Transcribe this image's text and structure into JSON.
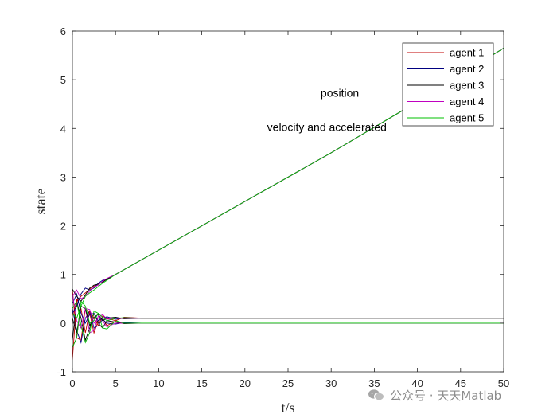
{
  "chart_data": {
    "type": "line",
    "title": "",
    "xlabel": "t/s",
    "ylabel": "state",
    "xlim": [
      0,
      50
    ],
    "ylim": [
      -1,
      6
    ],
    "xticks": [
      0,
      5,
      10,
      15,
      20,
      25,
      30,
      35,
      40,
      45,
      50
    ],
    "yticks": [
      -1,
      0,
      1,
      2,
      3,
      4,
      5,
      6
    ],
    "grid": false,
    "legend_position": "top-right",
    "annotations": [
      {
        "text": "position",
        "x": 31.0,
        "y": 4.65
      },
      {
        "text": "velocity and accelerated",
        "x": 29.5,
        "y": 3.95
      }
    ],
    "series": [
      {
        "name": "agent 1",
        "color": "#c00000",
        "x": [
          0,
          0.5,
          1,
          1.5,
          2,
          2.5,
          3,
          3.5,
          4,
          5,
          6,
          8,
          10,
          15,
          20,
          30,
          40,
          50
        ],
        "position": [
          0.15,
          0.45,
          0.55,
          0.62,
          0.7,
          0.76,
          0.8,
          0.85,
          0.9,
          1.0,
          1.1,
          1.3,
          1.5,
          2.0,
          2.5,
          3.5,
          4.55,
          5.65
        ],
        "velocity": [
          -0.75,
          0.5,
          0.3,
          -0.2,
          0.25,
          0.1,
          -0.05,
          0.15,
          0.1,
          0.05,
          0.12,
          0.1,
          0.1,
          0.1,
          0.1,
          0.1,
          0.1,
          0.1
        ],
        "acceleration": [
          0.7,
          -0.3,
          -0.35,
          0.3,
          0.2,
          -0.2,
          0.05,
          0.1,
          -0.05,
          0.03,
          0.0,
          0.0,
          0.0,
          0.0,
          0.0,
          0.0,
          0.0,
          0.0
        ]
      },
      {
        "name": "agent 2",
        "color": "#000080",
        "x": [
          0,
          0.5,
          1,
          1.5,
          2,
          2.5,
          3,
          3.5,
          4,
          5,
          6,
          8,
          10,
          15,
          20,
          30,
          40,
          50
        ],
        "position": [
          0.2,
          0.35,
          0.6,
          0.72,
          0.68,
          0.72,
          0.82,
          0.88,
          0.9,
          1.0,
          1.1,
          1.3,
          1.5,
          2.0,
          2.5,
          3.5,
          4.55,
          5.65
        ],
        "velocity": [
          0.4,
          0.6,
          0.2,
          0.0,
          0.18,
          0.2,
          0.05,
          0.1,
          0.13,
          0.08,
          0.11,
          0.1,
          0.1,
          0.1,
          0.1,
          0.1,
          0.1,
          0.1
        ],
        "acceleration": [
          0.3,
          -0.15,
          -0.4,
          0.1,
          0.25,
          -0.1,
          -0.05,
          0.08,
          0.0,
          -0.02,
          0.01,
          0.0,
          0.0,
          0.0,
          0.0,
          0.0,
          0.0,
          0.0
        ]
      },
      {
        "name": "agent 3",
        "color": "#000000",
        "x": [
          0,
          0.5,
          1,
          1.5,
          2,
          2.5,
          3,
          3.5,
          4,
          5,
          6,
          8,
          10,
          15,
          20,
          30,
          40,
          50
        ],
        "position": [
          0.7,
          0.55,
          0.45,
          0.58,
          0.72,
          0.78,
          0.8,
          0.84,
          0.9,
          1.0,
          1.1,
          1.3,
          1.5,
          2.0,
          2.5,
          3.5,
          4.55,
          5.65
        ],
        "velocity": [
          0.1,
          -0.2,
          0.35,
          0.3,
          -0.05,
          0.12,
          0.18,
          0.05,
          0.1,
          0.12,
          0.09,
          0.1,
          0.1,
          0.1,
          0.1,
          0.1,
          0.1,
          0.1
        ],
        "acceleration": [
          -0.35,
          0.45,
          0.1,
          -0.35,
          -0.1,
          0.2,
          0.0,
          -0.1,
          0.05,
          0.02,
          -0.01,
          0.0,
          0.0,
          0.0,
          0.0,
          0.0,
          0.0,
          0.0
        ]
      },
      {
        "name": "agent 4",
        "color": "#c000c0",
        "x": [
          0,
          0.5,
          1,
          1.5,
          2,
          2.5,
          3,
          3.5,
          4,
          5,
          6,
          8,
          10,
          15,
          20,
          30,
          40,
          50
        ],
        "position": [
          0.55,
          0.68,
          0.5,
          0.55,
          0.66,
          0.74,
          0.78,
          0.86,
          0.92,
          1.0,
          1.1,
          1.3,
          1.5,
          2.0,
          2.5,
          3.5,
          4.55,
          5.65
        ],
        "velocity": [
          0.6,
          0.05,
          -0.1,
          0.3,
          0.28,
          0.0,
          0.1,
          0.18,
          0.08,
          0.1,
          0.1,
          0.1,
          0.1,
          0.1,
          0.1,
          0.1,
          0.1,
          0.1
        ],
        "acceleration": [
          -0.5,
          -0.3,
          0.35,
          0.3,
          -0.2,
          -0.15,
          0.15,
          0.05,
          -0.08,
          0.0,
          0.0,
          0.0,
          0.0,
          0.0,
          0.0,
          0.0,
          0.0,
          0.0
        ]
      },
      {
        "name": "agent 5",
        "color": "#00c000",
        "x": [
          0,
          0.5,
          1,
          1.5,
          2,
          2.5,
          3,
          3.5,
          4,
          5,
          6,
          8,
          10,
          15,
          20,
          30,
          40,
          50
        ],
        "position": [
          0.2,
          0.1,
          0.35,
          0.55,
          0.62,
          0.68,
          0.75,
          0.82,
          0.88,
          1.0,
          1.1,
          1.3,
          1.5,
          2.0,
          2.5,
          3.5,
          4.55,
          5.65
        ],
        "velocity": [
          -0.5,
          -0.3,
          0.45,
          0.35,
          0.0,
          0.05,
          0.2,
          0.12,
          0.05,
          0.1,
          0.11,
          0.1,
          0.1,
          0.1,
          0.1,
          0.1,
          0.1,
          0.1
        ],
        "acceleration": [
          0.3,
          0.45,
          -0.05,
          -0.4,
          -0.2,
          0.25,
          0.2,
          -0.1,
          -0.12,
          0.05,
          0.0,
          0.0,
          0.0,
          0.0,
          0.0,
          0.0,
          0.0,
          0.0
        ]
      }
    ]
  },
  "watermark": {
    "icon": "wechat-icon",
    "text": "公众号 · 天天Matlab"
  }
}
